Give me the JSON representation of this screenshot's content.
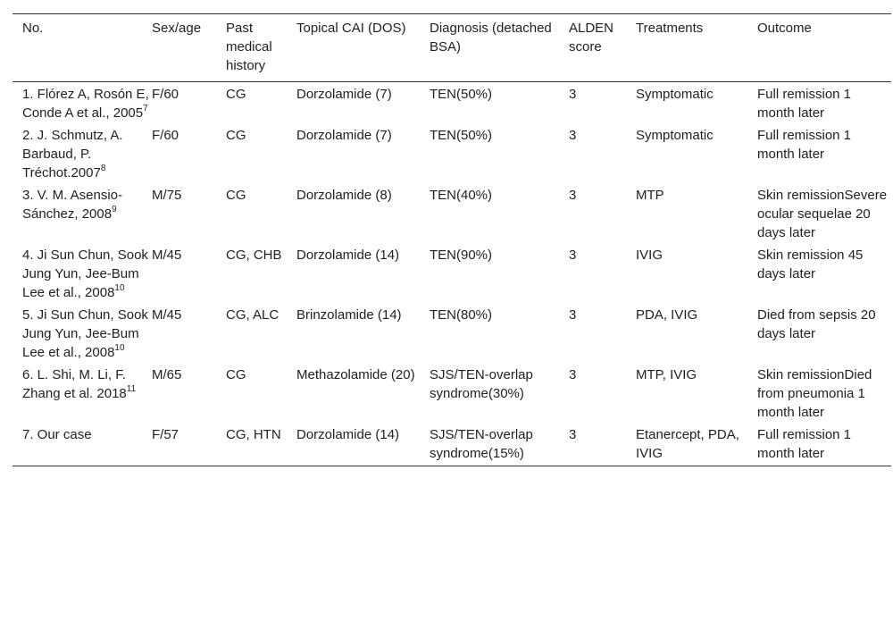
{
  "table": {
    "headers": [
      "No.",
      "Sex/age",
      "Past medical history",
      "Topical CAI (DOS)",
      "Diagnosis (detached BSA)",
      "ALDEN score",
      "Treatments",
      "Outcome"
    ],
    "rows": [
      {
        "no": "1. Flórez A, Rosón E, Conde A et al., 2005",
        "ref": "7",
        "sex_age": "F/60",
        "history": "CG",
        "cai": "Dorzolamide (7)",
        "diagnosis": "TEN(50%)",
        "alden": "3",
        "treatments": "Symptomatic",
        "outcome": "Full remission 1 month later"
      },
      {
        "no": "2. J. Schmutz, A. Barbaud, P. Tréchot.2007",
        "ref": "8",
        "sex_age": "F/60",
        "history": "CG",
        "cai": "Dorzolamide (7)",
        "diagnosis": "TEN(50%)",
        "alden": "3",
        "treatments": "Symptomatic",
        "outcome": "Full remission 1 month later"
      },
      {
        "no": "3. V. M. Asensio-Sánchez, 2008",
        "ref": "9",
        "sex_age": "M/75",
        "history": "CG",
        "cai": "Dorzolamide (8)",
        "diagnosis": "TEN(40%)",
        "alden": "3",
        "treatments": "MTP",
        "outcome": "Skin remissionSevere ocular sequelae 20 days later"
      },
      {
        "no": "4. Ji Sun Chun, Sook Jung Yun, Jee-Bum Lee et al., 2008",
        "ref": "10",
        "sex_age": "M/45",
        "history": "CG, CHB",
        "cai": "Dorzolamide (14)",
        "diagnosis": "TEN(90%)",
        "alden": "3",
        "treatments": "IVIG",
        "outcome": "Skin remission 45 days later"
      },
      {
        "no": "5. Ji Sun Chun, Sook Jung Yun, Jee-Bum Lee et al., 2008",
        "ref": "10",
        "sex_age": "M/45",
        "history": "CG, ALC",
        "cai": "Brinzolamide (14)",
        "diagnosis": "TEN(80%)",
        "alden": "3",
        "treatments": "PDA, IVIG",
        "outcome": "Died from sepsis 20 days later"
      },
      {
        "no": "6. L. Shi, M. Li, F. Zhang et al. 2018",
        "ref": "11",
        "sex_age": "M/65",
        "history": "CG",
        "cai": "Methazolamide (20)",
        "diagnosis": "SJS/TEN-overlap syndrome(30%)",
        "alden": "3",
        "treatments": "MTP, IVIG",
        "outcome": "Skin remissionDied from pneumonia 1 month later"
      },
      {
        "no": "7. Our case",
        "ref": "",
        "sex_age": "F/57",
        "history": "CG, HTN",
        "cai": "Dorzolamide (14)",
        "diagnosis": "SJS/TEN-overlap syndrome(15%)",
        "alden": "3",
        "treatments": "Etanercept, PDA, IVIG",
        "outcome": "Full remission 1 month later"
      }
    ]
  }
}
